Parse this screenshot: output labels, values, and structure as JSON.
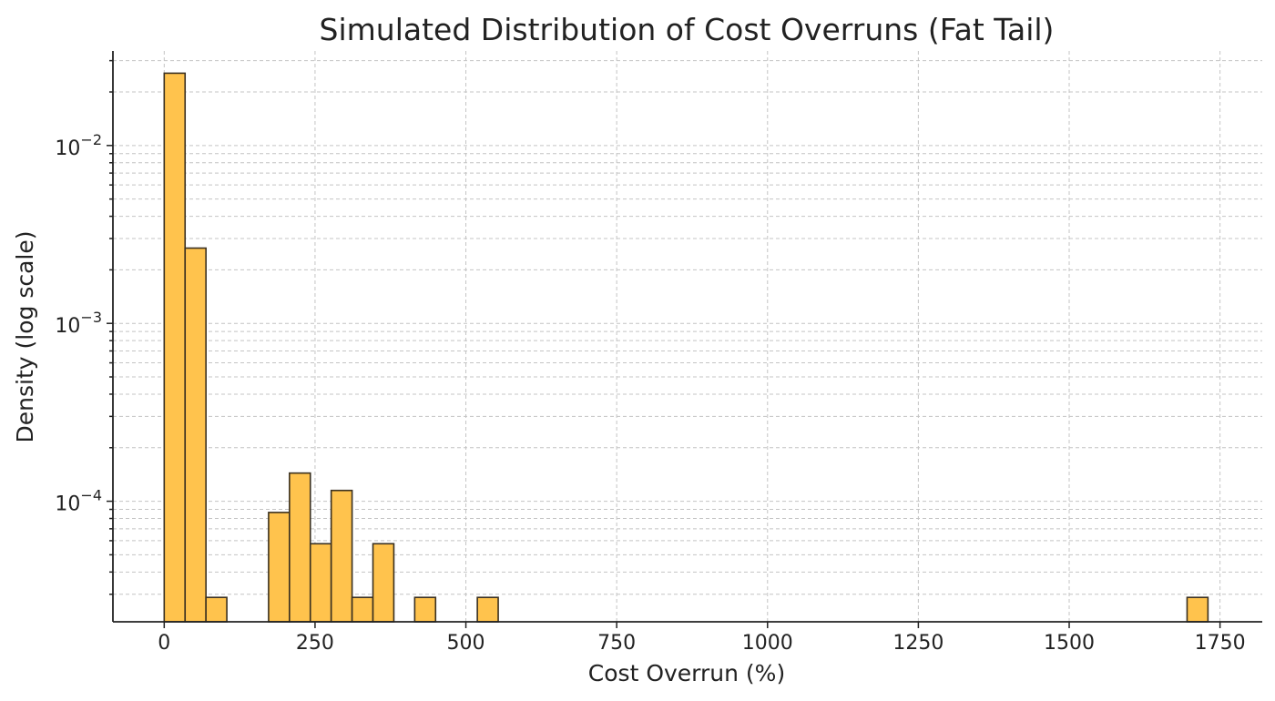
{
  "chart_data": {
    "type": "bar",
    "title": "Simulated Distribution of Cost Overruns (Fat Tail)",
    "xlabel": "Cost Overrun (%)",
    "ylabel": "Density (log scale)",
    "yscale": "log",
    "xlim": [
      -85,
      1820
    ],
    "ylim": [
      2.1e-05,
      0.034
    ],
    "grid": true,
    "bar_color": "#ffc34d",
    "edge_color": "#3a3020",
    "x_ticks": [
      {
        "value": 0,
        "label": "0"
      },
      {
        "value": 250,
        "label": "250"
      },
      {
        "value": 500,
        "label": "500"
      },
      {
        "value": 750,
        "label": "750"
      },
      {
        "value": 1000,
        "label": "1000"
      },
      {
        "value": 1250,
        "label": "1250"
      },
      {
        "value": 1500,
        "label": "1500"
      },
      {
        "value": 1750,
        "label": "1750"
      }
    ],
    "y_ticks": [
      {
        "value": 0.01,
        "base": "10",
        "exp": "−2"
      },
      {
        "value": 0.001,
        "base": "10",
        "exp": "−3"
      },
      {
        "value": 0.0001,
        "base": "10",
        "exp": "−4"
      }
    ],
    "bin_width": 34.6,
    "bins": [
      {
        "x": 0,
        "value": 0.0255
      },
      {
        "x": 34.6,
        "value": 0.00265
      },
      {
        "x": 69.2,
        "value": 2.88e-05
      },
      {
        "x": 173,
        "value": 8.65e-05
      },
      {
        "x": 207.6,
        "value": 0.000144
      },
      {
        "x": 242.2,
        "value": 5.77e-05
      },
      {
        "x": 276.8,
        "value": 0.000115
      },
      {
        "x": 311.4,
        "value": 2.88e-05
      },
      {
        "x": 346,
        "value": 5.77e-05
      },
      {
        "x": 415.2,
        "value": 2.88e-05
      },
      {
        "x": 519,
        "value": 2.88e-05
      },
      {
        "x": 1695.4,
        "value": 2.88e-05
      }
    ]
  }
}
